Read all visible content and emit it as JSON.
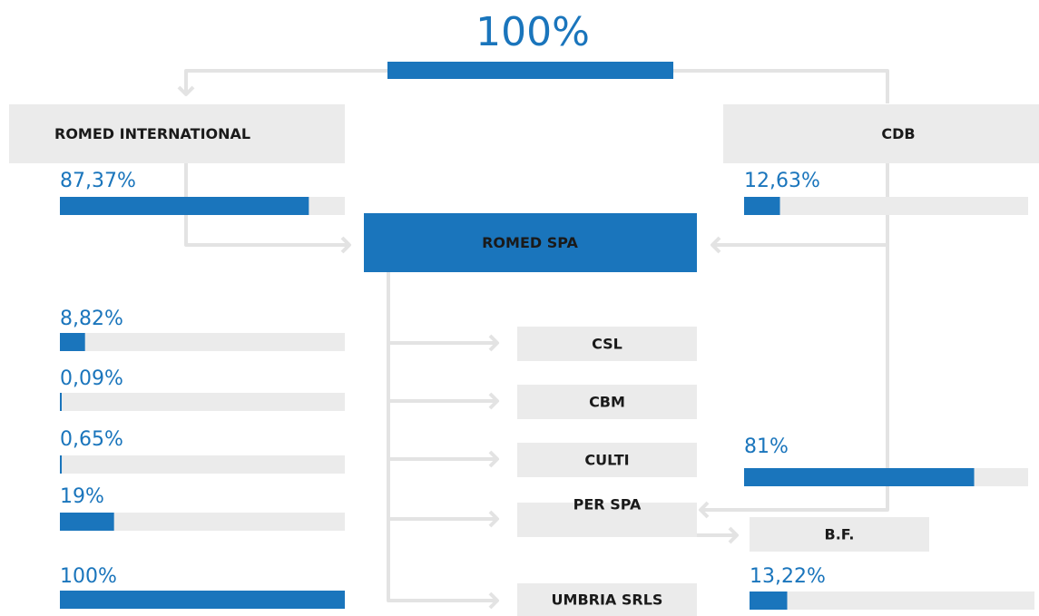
{
  "top_share": {
    "value": 100,
    "label": "100%"
  },
  "nodes": [
    "ROMED INTERNATIONAL",
    "CDB",
    "ROMED SPA",
    "CSL",
    "CBM",
    "CULTI",
    "PER SPA",
    "UMBRIA SRLS",
    "B.F."
  ],
  "shares": [
    {
      "value": 87.37,
      "label": "87,37%"
    },
    {
      "value": 12.63,
      "label": "12,63%"
    },
    {
      "value": 8.82,
      "label": "8,82%"
    },
    {
      "value": 0.09,
      "label": "0,09%"
    },
    {
      "value": 0.65,
      "label": "0,65%"
    },
    {
      "value": 19,
      "label": "19%"
    },
    {
      "value": 100,
      "label": "100%"
    },
    {
      "value": 81,
      "label": "81%"
    },
    {
      "value": 13.22,
      "label": "13,22%"
    }
  ]
}
